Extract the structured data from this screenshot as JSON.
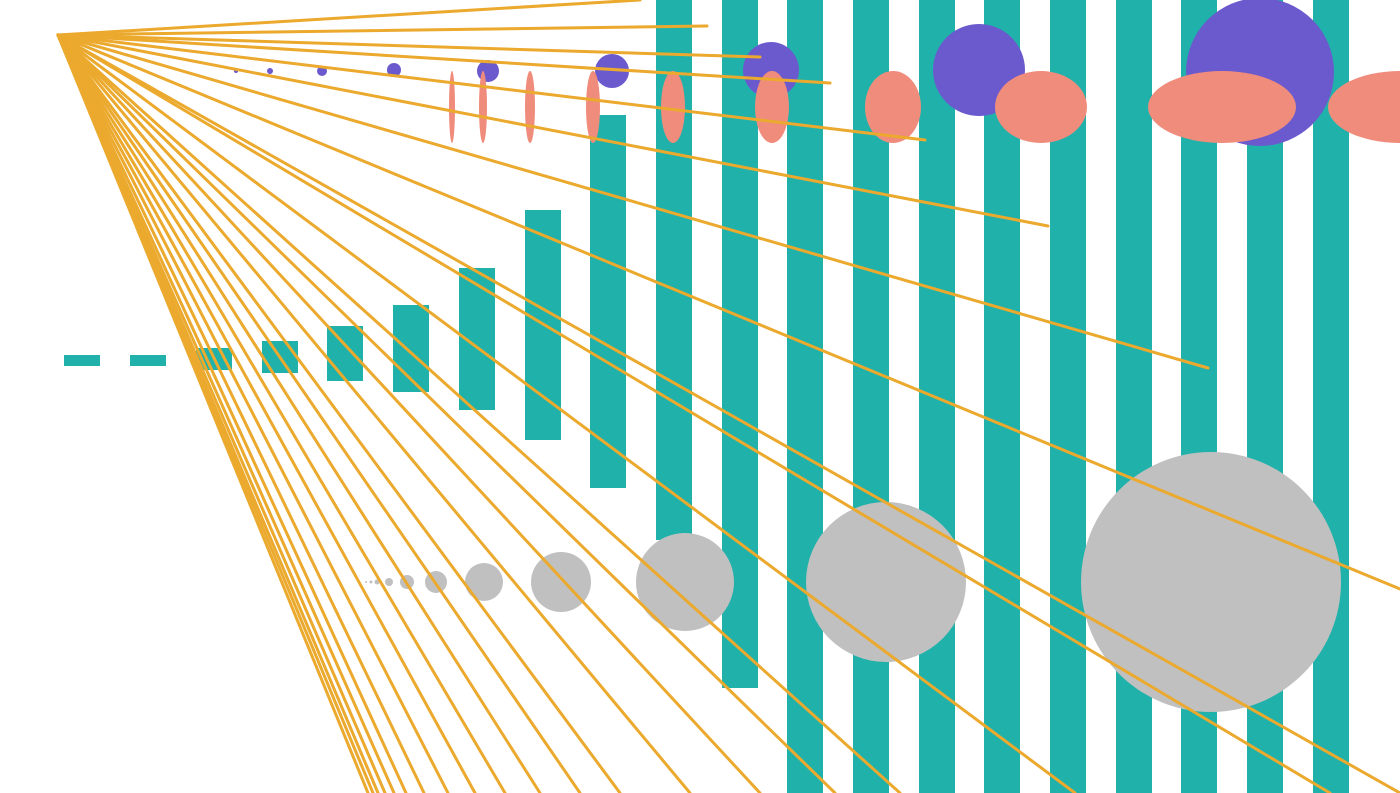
{
  "palette": {
    "background": "#ffffff",
    "bars": "#20b2aa",
    "rays": "#eba92e",
    "purple_dots": "#6a5acd",
    "salmon_ellipses": "#f08c7c",
    "gray_circles": "#c0c0c0"
  },
  "groups": {
    "bars": "teal-bar",
    "purple_dots": "purple-circle",
    "salmon_ellipses": "salmon-ellipse",
    "gray_circles": "gray-circle",
    "rays": "gold-ray"
  }
}
